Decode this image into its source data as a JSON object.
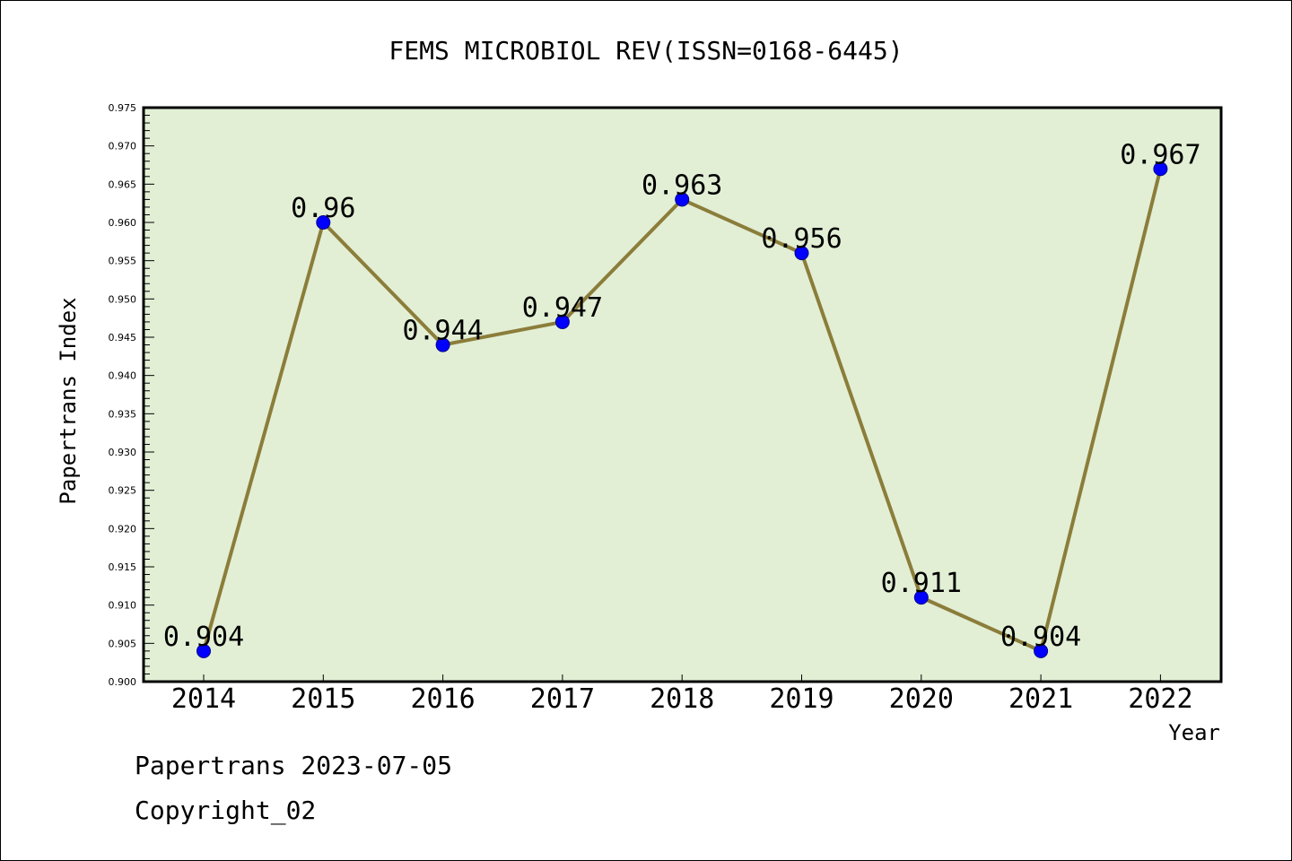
{
  "chart_data": {
    "type": "line",
    "title": "FEMS MICROBIOL REV(ISSN=0168-6445)",
    "xlabel": "Year",
    "ylabel": "Papertrans Index",
    "categories": [
      "2014",
      "2015",
      "2016",
      "2017",
      "2018",
      "2019",
      "2020",
      "2021",
      "2022"
    ],
    "values": [
      0.904,
      0.96,
      0.944,
      0.947,
      0.963,
      0.956,
      0.911,
      0.904,
      0.967
    ],
    "data_labels": [
      "0.904",
      "0.96",
      "0.944",
      "0.947",
      "0.963",
      "0.956",
      "0.911",
      "0.904",
      "0.967"
    ],
    "ylim": [
      0.9,
      0.975
    ],
    "yticks": [
      "0.900",
      "0.905",
      "0.910",
      "0.915",
      "0.920",
      "0.925",
      "0.930",
      "0.935",
      "0.940",
      "0.945",
      "0.950",
      "0.955",
      "0.960",
      "0.965",
      "0.970",
      "0.975"
    ],
    "grid": false,
    "colors": {
      "plot_background": "#e2efd5",
      "line": "#8b7d3a",
      "marker": "#0000ff"
    }
  },
  "footer": {
    "line1": "Papertrans 2023-07-05",
    "line2": "Copyright_02"
  }
}
